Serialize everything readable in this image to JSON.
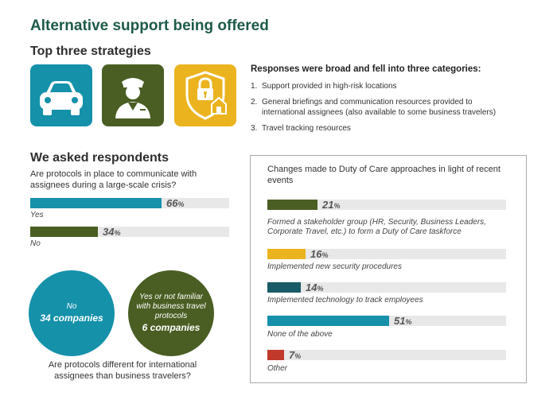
{
  "page": {
    "title": "Alternative support being offered",
    "strategies_title": "Top three strategies",
    "respondents_title": "We asked respondents"
  },
  "strategies": {
    "icons": [
      "car-icon",
      "security-guard-icon",
      "shield-lock-house-icon"
    ],
    "colors": [
      "#1591aa",
      "#4a5e23",
      "#ebb31e"
    ]
  },
  "responses": {
    "heading": "Responses were broad and fell into three categories:",
    "items": [
      {
        "num": "1.",
        "text": "Support provided in high-risk locations"
      },
      {
        "num": "2.",
        "text": "General briefings and communication resources provided to international assignees (also available to some business travelers)"
      },
      {
        "num": "3.",
        "text": "Travel tracking resources"
      }
    ]
  },
  "protocols": {
    "question": "Are protocols in place to communicate with assignees during a large-scale crisis?",
    "yes_label": "Yes",
    "no_label": "No"
  },
  "different": {
    "question": "Are protocols different for international assignees than business travelers?",
    "no_circle": {
      "line1": "No",
      "line2": "34 companies"
    },
    "yes_circle": {
      "line1": "Yes or not familiar",
      "line2": "with business travel",
      "line3": "protocols",
      "line4": "6 companies"
    }
  },
  "changes": {
    "title": "Changes made to Duty of Care approaches in light of recent events",
    "items": [
      {
        "caption": "Formed a stakeholder group (HR, Security, Business Leaders, Corporate Travel, etc.) to form a Duty of Care taskforce"
      },
      {
        "caption": "Implemented new security procedures"
      },
      {
        "caption": "Implemented technology to track employees"
      },
      {
        "caption": "None of the above"
      },
      {
        "caption": "Other"
      }
    ]
  },
  "chart_data": [
    {
      "type": "bar",
      "title": "Are protocols in place to communicate with assignees during a large-scale crisis?",
      "categories": [
        "Yes",
        "No"
      ],
      "values": [
        66,
        34
      ],
      "unit": "%",
      "colors": [
        "#1591aa",
        "#4a5e23"
      ],
      "ylim": [
        0,
        100
      ]
    },
    {
      "type": "bar",
      "title": "Changes made to Duty of Care approaches in light of recent events",
      "categories": [
        "Formed a stakeholder group (HR, Security, Business Leaders, Corporate Travel, etc.) to form a Duty of Care taskforce",
        "Implemented new security procedures",
        "Implemented technology to track employees",
        "None of the above",
        "Other"
      ],
      "values": [
        21,
        16,
        14,
        51,
        7
      ],
      "unit": "%",
      "colors": [
        "#4a5e23",
        "#ebb31e",
        "#195b66",
        "#1591aa",
        "#c0392b"
      ],
      "ylim": [
        0,
        100
      ]
    }
  ]
}
